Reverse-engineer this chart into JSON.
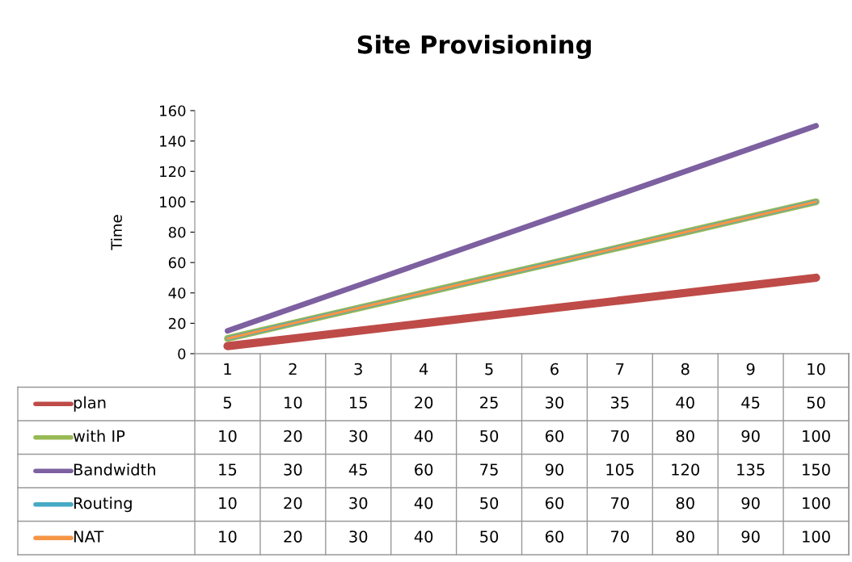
{
  "chart_data": {
    "type": "line",
    "title": "Site Provisioning",
    "ylabel": "Time",
    "categories": [
      "1",
      "2",
      "3",
      "4",
      "5",
      "6",
      "7",
      "8",
      "9",
      "10"
    ],
    "series": [
      {
        "name": "plan",
        "color": "#be4b48",
        "values": [
          5,
          10,
          15,
          20,
          25,
          30,
          35,
          40,
          45,
          50
        ]
      },
      {
        "name": "with IP",
        "color": "#98b954",
        "values": [
          10,
          20,
          30,
          40,
          50,
          60,
          70,
          80,
          90,
          100
        ]
      },
      {
        "name": "Bandwidth",
        "color": "#7d60a0",
        "values": [
          15,
          30,
          45,
          60,
          75,
          90,
          105,
          120,
          135,
          150
        ]
      },
      {
        "name": "Routing",
        "color": "#46aac5",
        "values": [
          10,
          20,
          30,
          40,
          50,
          60,
          70,
          80,
          90,
          100
        ]
      },
      {
        "name": "NAT",
        "color": "#f59645",
        "values": [
          10,
          20,
          30,
          40,
          50,
          60,
          70,
          80,
          90,
          100
        ]
      }
    ],
    "ylim": [
      0,
      160
    ],
    "yticks": [
      0,
      20,
      40,
      60,
      80,
      100,
      120,
      140,
      160
    ],
    "grid": false,
    "legend": "bottom",
    "data_labels": true,
    "marker": "none",
    "line_style": "solid"
  }
}
